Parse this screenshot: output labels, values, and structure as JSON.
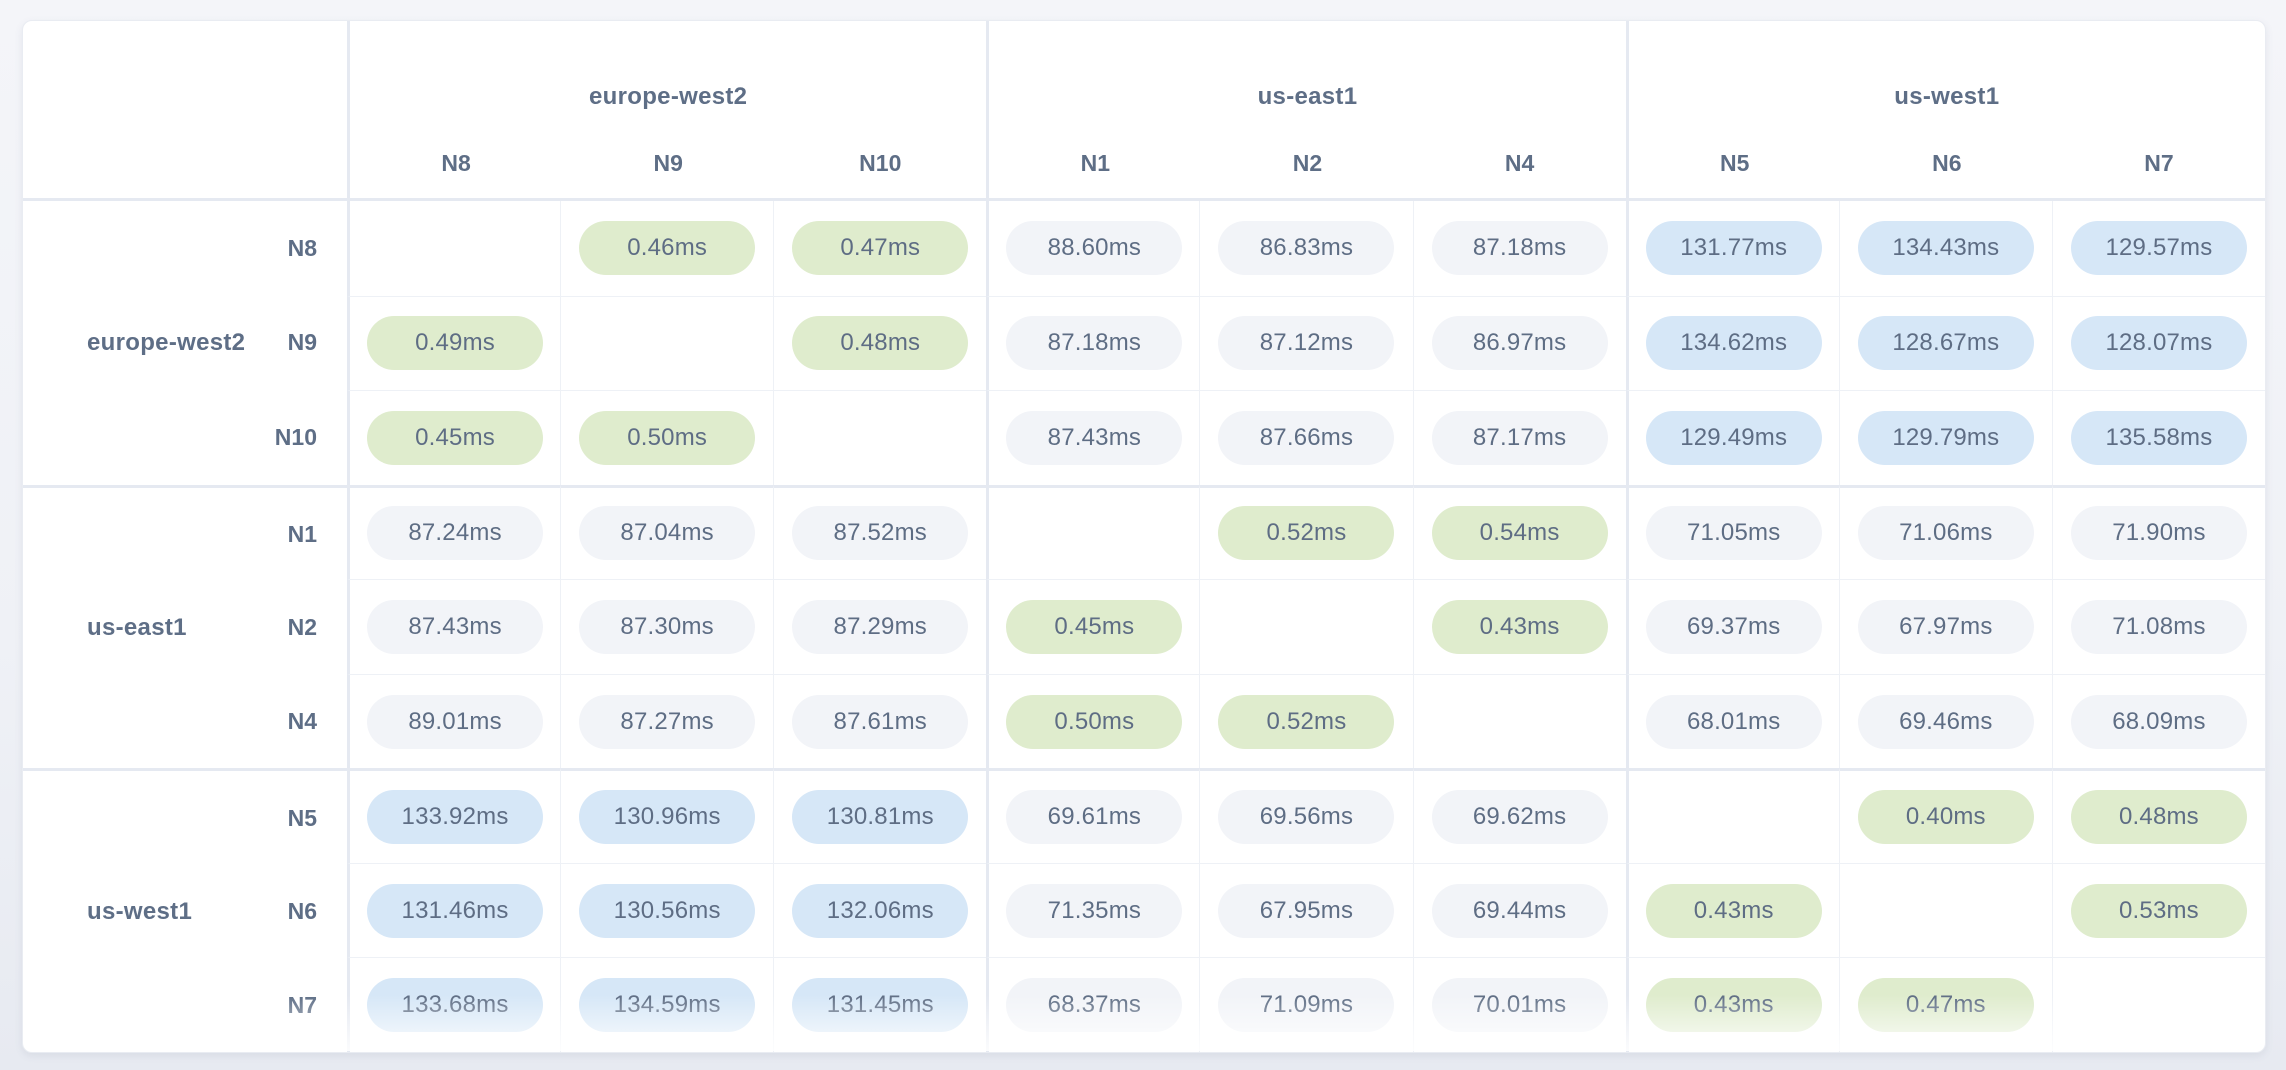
{
  "matrix": {
    "unit": "ms",
    "groups": [
      {
        "region": "europe-west2",
        "nodes": [
          "N8",
          "N9",
          "N10"
        ]
      },
      {
        "region": "us-east1",
        "nodes": [
          "N1",
          "N2",
          "N4"
        ]
      },
      {
        "region": "us-west1",
        "nodes": [
          "N5",
          "N6",
          "N7"
        ]
      }
    ],
    "rows": [
      {
        "node": "N8",
        "region": "europe-west2",
        "values": [
          "",
          "0.46ms",
          "0.47ms",
          "88.60ms",
          "86.83ms",
          "87.18ms",
          "131.77ms",
          "134.43ms",
          "129.57ms"
        ]
      },
      {
        "node": "N9",
        "region": "europe-west2",
        "values": [
          "0.49ms",
          "",
          "0.48ms",
          "87.18ms",
          "87.12ms",
          "86.97ms",
          "134.62ms",
          "128.67ms",
          "128.07ms"
        ]
      },
      {
        "node": "N10",
        "region": "europe-west2",
        "values": [
          "0.45ms",
          "0.50ms",
          "",
          "87.43ms",
          "87.66ms",
          "87.17ms",
          "129.49ms",
          "129.79ms",
          "135.58ms"
        ]
      },
      {
        "node": "N1",
        "region": "us-east1",
        "values": [
          "87.24ms",
          "87.04ms",
          "87.52ms",
          "",
          "0.52ms",
          "0.54ms",
          "71.05ms",
          "71.06ms",
          "71.90ms"
        ]
      },
      {
        "node": "N2",
        "region": "us-east1",
        "values": [
          "87.43ms",
          "87.30ms",
          "87.29ms",
          "0.45ms",
          "",
          "0.43ms",
          "69.37ms",
          "67.97ms",
          "71.08ms"
        ]
      },
      {
        "node": "N4",
        "region": "us-east1",
        "values": [
          "89.01ms",
          "87.27ms",
          "87.61ms",
          "0.50ms",
          "0.52ms",
          "",
          "68.01ms",
          "69.46ms",
          "68.09ms"
        ]
      },
      {
        "node": "N5",
        "region": "us-west1",
        "values": [
          "133.92ms",
          "130.96ms",
          "130.81ms",
          "69.61ms",
          "69.56ms",
          "69.62ms",
          "",
          "0.40ms",
          "0.48ms"
        ]
      },
      {
        "node": "N6",
        "region": "us-west1",
        "values": [
          "131.46ms",
          "130.56ms",
          "132.06ms",
          "71.35ms",
          "67.95ms",
          "69.44ms",
          "0.43ms",
          "",
          "0.53ms"
        ]
      },
      {
        "node": "N7",
        "region": "us-west1",
        "values": [
          "133.68ms",
          "134.59ms",
          "131.45ms",
          "68.37ms",
          "71.09ms",
          "70.01ms",
          "0.43ms",
          "0.47ms",
          ""
        ]
      }
    ]
  },
  "colors": {
    "intra_region_pill": "#dfeccd",
    "medium_latency_pill": "#f2f4f8",
    "high_latency_pill": "#d6e7f7",
    "label_text": "#5e6e86",
    "pill_text": "#5e6d84"
  }
}
